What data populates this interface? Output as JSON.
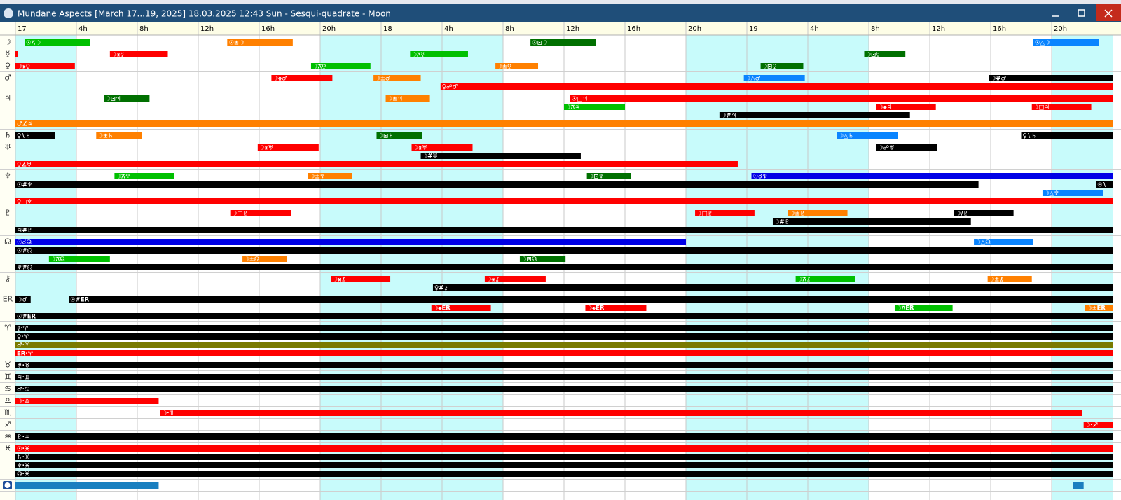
{
  "window": {
    "title": "Mundane Aspects [March 17...19, 2025]  18.03.2025 12:43  Sun - Sesqui-quadrate - Moon"
  },
  "axis": {
    "range": [
      0,
      72
    ],
    "ticks": [
      {
        "value": 0,
        "label": "17"
      },
      {
        "value": 4,
        "label": "4h"
      },
      {
        "value": 8,
        "label": "8h"
      },
      {
        "value": 12,
        "label": "12h"
      },
      {
        "value": 16,
        "label": "16h"
      },
      {
        "value": 20,
        "label": "20h"
      },
      {
        "value": 24,
        "label": "18"
      },
      {
        "value": 28,
        "label": "4h"
      },
      {
        "value": 32,
        "label": "8h"
      },
      {
        "value": 36,
        "label": "12h"
      },
      {
        "value": 40,
        "label": "16h"
      },
      {
        "value": 44,
        "label": "20h"
      },
      {
        "value": 48,
        "label": "19"
      },
      {
        "value": 52,
        "label": "4h"
      },
      {
        "value": 56,
        "label": "8h"
      },
      {
        "value": 60,
        "label": "12h"
      },
      {
        "value": 64,
        "label": "16h"
      },
      {
        "value": 68,
        "label": "20h"
      }
    ],
    "shaded": [
      [
        0,
        4
      ],
      [
        20,
        32
      ],
      [
        44,
        56
      ],
      [
        68,
        72
      ]
    ]
  },
  "groups": [
    {
      "symbol": "☽",
      "lanes": [
        [
          {
            "start": 0.6,
            "end": 4.9,
            "color": "#00c000",
            "label": "☉⚻☽"
          },
          {
            "start": 13.9,
            "end": 18.2,
            "color": "#ff8000",
            "label": "☉±☽"
          },
          {
            "start": 33.8,
            "end": 38.1,
            "color": "#007000",
            "label": "☉⊡☽"
          },
          {
            "start": 66.8,
            "end": 71.1,
            "color": "#0a84ff",
            "label": "☉△☽"
          }
        ]
      ]
    },
    {
      "symbol": "☿",
      "lanes": [
        [
          {
            "start": 0,
            "end": 0.15,
            "color": "#ff0000"
          },
          {
            "start": 6.2,
            "end": 10.0,
            "color": "#ff0000",
            "label": "☽⚹☿"
          },
          {
            "start": 25.9,
            "end": 29.7,
            "color": "#00c000",
            "label": "☽⚻☿"
          },
          {
            "start": 55.7,
            "end": 58.4,
            "color": "#007000",
            "label": "☽⊡☿"
          }
        ]
      ]
    },
    {
      "symbol": "♀",
      "lanes": [
        [
          {
            "start": 0,
            "end": 3.9,
            "color": "#ff0000",
            "label": "☽⚹♀"
          },
          {
            "start": 19.4,
            "end": 23.3,
            "color": "#00c000",
            "label": "☽⚻♀"
          },
          {
            "start": 31.5,
            "end": 34.3,
            "color": "#ff8000",
            "label": "☽±♀"
          },
          {
            "start": 48.9,
            "end": 51.7,
            "color": "#007000",
            "label": "☽⊡♀"
          }
        ]
      ]
    },
    {
      "symbol": "♂",
      "lanes": [
        [
          {
            "start": 16.8,
            "end": 20.8,
            "color": "#ff0000",
            "label": "☽⚹♂"
          },
          {
            "start": 23.5,
            "end": 26.6,
            "color": "#ff8000",
            "label": "☽±♂"
          },
          {
            "start": 47.8,
            "end": 51.8,
            "color": "#0a84ff",
            "label": "☽△♂"
          },
          {
            "start": 63.9,
            "end": 72,
            "color": "#000000",
            "label": "☽#♂"
          }
        ],
        [
          {
            "start": 27.9,
            "end": 72,
            "color": "#ff0000",
            "label": "♀☍♂"
          }
        ]
      ]
    },
    {
      "symbol": "♃",
      "lanes": [
        [
          {
            "start": 5.8,
            "end": 8.8,
            "color": "#007000",
            "label": "☽⊡♃"
          },
          {
            "start": 24.3,
            "end": 27.2,
            "color": "#ff8000",
            "label": "☽±♃"
          },
          {
            "start": 36.4,
            "end": 72,
            "color": "#ff0000",
            "label": "☉□♃"
          }
        ],
        [
          {
            "start": 36.0,
            "end": 40.0,
            "color": "#00c000",
            "label": "☽⚻♃"
          },
          {
            "start": 56.5,
            "end": 60.4,
            "color": "#ff0000",
            "label": "☽⚹♃"
          },
          {
            "start": 66.7,
            "end": 70.6,
            "color": "#ff0000",
            "label": "☽□♃"
          }
        ],
        [
          {
            "start": 46.2,
            "end": 58.7,
            "color": "#000000",
            "label": "☽#♃"
          }
        ],
        [
          {
            "start": 0,
            "end": 72,
            "color": "#ff8000",
            "label": "♂∠♃"
          }
        ]
      ]
    },
    {
      "symbol": "♄",
      "lanes": [
        [
          {
            "start": 0,
            "end": 2.6,
            "color": "#000000",
            "label": "♀∖♄"
          },
          {
            "start": 5.3,
            "end": 8.3,
            "color": "#ff8000",
            "label": "☽±♄"
          },
          {
            "start": 23.7,
            "end": 26.7,
            "color": "#007000",
            "label": "☽⊡♄"
          },
          {
            "start": 53.9,
            "end": 57.9,
            "color": "#0a84ff",
            "label": "☽△♄"
          },
          {
            "start": 66.0,
            "end": 72,
            "color": "#000000",
            "label": "♀∖♄"
          }
        ]
      ]
    },
    {
      "symbol": "♅",
      "lanes": [
        [
          {
            "start": 15.9,
            "end": 19.9,
            "color": "#ff0000",
            "label": "☽⚹♅"
          },
          {
            "start": 26.0,
            "end": 30.0,
            "color": "#ff0000",
            "label": "☽⚹♅"
          },
          {
            "start": 56.5,
            "end": 60.5,
            "color": "#000000",
            "label": "☽☍♅"
          }
        ],
        [
          {
            "start": 26.6,
            "end": 37.1,
            "color": "#000000",
            "label": "☽#♅"
          }
        ],
        [
          {
            "start": 0,
            "end": 47.4,
            "color": "#ff0000",
            "label": "♀∠♅"
          }
        ]
      ]
    },
    {
      "symbol": "♆",
      "lanes": [
        [
          {
            "start": 6.5,
            "end": 10.4,
            "color": "#00c000",
            "label": "☽⚻♆"
          },
          {
            "start": 19.2,
            "end": 22.1,
            "color": "#ff8000",
            "label": "☽±♆"
          },
          {
            "start": 37.5,
            "end": 40.4,
            "color": "#007000",
            "label": "☽⊡♆"
          },
          {
            "start": 48.3,
            "end": 72,
            "color": "#0000e6",
            "label": "☉☌♆"
          }
        ],
        [
          {
            "start": 0,
            "end": 63.2,
            "color": "#000000",
            "label": "☉#♆"
          },
          {
            "start": 70.9,
            "end": 72,
            "color": "#000000",
            "label": "☉∖"
          }
        ],
        [
          {
            "start": 67.4,
            "end": 71.4,
            "color": "#0a84ff",
            "label": "☽△♆"
          }
        ],
        [
          {
            "start": 0,
            "end": 72,
            "color": "#ff0000",
            "label": "♀□♆"
          }
        ]
      ]
    },
    {
      "symbol": "♇",
      "lanes": [
        [
          {
            "start": 14.1,
            "end": 18.1,
            "color": "#ff0000",
            "label": "☽□♇"
          },
          {
            "start": 44.6,
            "end": 48.5,
            "color": "#ff0000",
            "label": "☽□♇"
          },
          {
            "start": 50.7,
            "end": 54.6,
            "color": "#ff8000",
            "label": "☽±♇"
          },
          {
            "start": 61.6,
            "end": 65.5,
            "color": "#000000",
            "label": "☽∕♇"
          }
        ],
        [
          {
            "start": 49.7,
            "end": 62.7,
            "color": "#000000",
            "label": "☽#♇"
          }
        ],
        [
          {
            "start": 0,
            "end": 72,
            "color": "#000000",
            "label": "♃#♇"
          }
        ]
      ]
    },
    {
      "symbol": "☊",
      "lanes": [
        [
          {
            "start": 0,
            "end": 44.0,
            "color": "#0000e6",
            "label": "☉☌☊"
          },
          {
            "start": 62.9,
            "end": 66.8,
            "color": "#0a84ff",
            "label": "☽△☊"
          }
        ],
        [
          {
            "start": 0,
            "end": 72,
            "color": "#000000",
            "label": "☉#☊"
          }
        ],
        [
          {
            "start": 2.2,
            "end": 6.2,
            "color": "#00c000",
            "label": "☽⚻☊"
          },
          {
            "start": 14.9,
            "end": 17.8,
            "color": "#ff8000",
            "label": "☽±☊"
          },
          {
            "start": 33.1,
            "end": 36.1,
            "color": "#007000",
            "label": "☽⊡☊"
          }
        ],
        [
          {
            "start": 0,
            "end": 72,
            "color": "#000000",
            "label": "♆#☊"
          }
        ]
      ]
    },
    {
      "symbol": "⚷",
      "lanes": [
        [
          {
            "start": 20.7,
            "end": 24.6,
            "color": "#ff0000",
            "label": "☽⚹⚷"
          },
          {
            "start": 30.8,
            "end": 34.8,
            "color": "#ff0000",
            "label": "☽⚹⚷"
          },
          {
            "start": 51.2,
            "end": 55.1,
            "color": "#00c000",
            "label": "☽⚻⚷"
          },
          {
            "start": 63.8,
            "end": 66.7,
            "color": "#ff8000",
            "label": "☽±⚷"
          }
        ],
        [
          {
            "start": 27.4,
            "end": 72,
            "color": "#000000",
            "label": "♀#⚷"
          }
        ]
      ]
    },
    {
      "symbol": "ER",
      "lanes": [
        [
          {
            "start": 0,
            "end": 1.0,
            "color": "#000000",
            "label": "☽♂"
          },
          {
            "start": 3.5,
            "end": 72,
            "color": "#000000",
            "label": "☉#ER"
          }
        ],
        [
          {
            "start": 27.3,
            "end": 31.2,
            "color": "#ff0000",
            "label": "☽⚹ER"
          },
          {
            "start": 37.4,
            "end": 41.4,
            "color": "#ff0000",
            "label": "☽⚹ER"
          },
          {
            "start": 57.7,
            "end": 61.5,
            "color": "#00c000",
            "label": "☽⚻ER"
          },
          {
            "start": 70.2,
            "end": 72,
            "color": "#ff8000",
            "label": "☽±ER"
          }
        ],
        [
          {
            "start": 0,
            "end": 72,
            "color": "#000000",
            "label": "☉#ER"
          }
        ]
      ]
    },
    {
      "symbol": "♈",
      "lanes": [
        [
          {
            "start": 0,
            "end": 72,
            "color": "#000000",
            "label": "☿·♈"
          }
        ],
        [
          {
            "start": 0,
            "end": 72,
            "color": "#000000",
            "label": "♀·♈"
          }
        ],
        [
          {
            "start": 0,
            "end": 72,
            "color": "#7a7a00",
            "label": "♂·♈"
          }
        ],
        [
          {
            "start": 0,
            "end": 72,
            "color": "#ff0000",
            "label": "ER·♈"
          }
        ]
      ]
    },
    {
      "symbol": "♉",
      "lanes": [
        [
          {
            "start": 0,
            "end": 72,
            "color": "#000000",
            "label": "♅·♉"
          }
        ]
      ]
    },
    {
      "symbol": "♊",
      "lanes": [
        [
          {
            "start": 0,
            "end": 72,
            "color": "#000000",
            "label": "♃·♊"
          }
        ]
      ]
    },
    {
      "symbol": "♋",
      "lanes": [
        [
          {
            "start": 0,
            "end": 72,
            "color": "#000000",
            "label": "♂·♋"
          }
        ]
      ]
    },
    {
      "symbol": "♎",
      "lanes": [
        [
          {
            "start": 0,
            "end": 9.4,
            "color": "#ff0000",
            "label": "☽·♎"
          }
        ]
      ]
    },
    {
      "symbol": "♏",
      "lanes": [
        [
          {
            "start": 9.5,
            "end": 70.0,
            "color": "#ff0000",
            "label": "☽·♏"
          }
        ]
      ]
    },
    {
      "symbol": "♐",
      "lanes": [
        [
          {
            "start": 70.1,
            "end": 72,
            "color": "#ff0000",
            "label": "☽·♐"
          }
        ]
      ]
    },
    {
      "symbol": "♒",
      "lanes": [
        [
          {
            "start": 0,
            "end": 72,
            "color": "#000000",
            "label": "♇·♒"
          }
        ]
      ]
    },
    {
      "symbol": "♓",
      "lanes": [
        [
          {
            "start": 0,
            "end": 72,
            "color": "#ff0000",
            "label": "☉·♓"
          }
        ],
        [
          {
            "start": 0,
            "end": 72,
            "color": "#000000",
            "label": "♄·♓"
          }
        ],
        [
          {
            "start": 0,
            "end": 72,
            "color": "#000000",
            "label": "♆·♓"
          }
        ],
        [
          {
            "start": 0,
            "end": 72,
            "color": "#000000",
            "label": "☊·♓"
          }
        ]
      ]
    },
    {
      "lanes": [
        [
          {
            "start": 0,
            "end": 9.4,
            "color": "#1a7fc0"
          },
          {
            "start": 69.4,
            "end": 70.1,
            "color": "#1a7fc0"
          }
        ]
      ]
    }
  ]
}
